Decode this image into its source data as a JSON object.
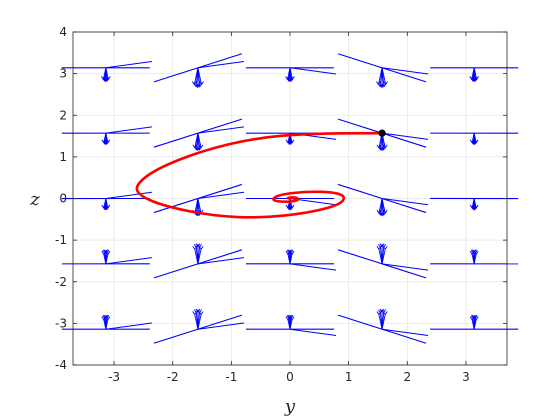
{
  "chart_data": {
    "type": "line",
    "title": "",
    "xlabel": "y",
    "ylabel": "z",
    "xlim": [
      -3.7,
      3.7
    ],
    "ylim": [
      -4,
      4
    ],
    "xticks": [
      -3,
      -2,
      -1,
      0,
      1,
      2,
      3
    ],
    "xtick_labels": [
      "-3",
      "-2",
      "-1",
      "0",
      "1",
      "2",
      "3"
    ],
    "yticks": [
      -4,
      -3,
      -2,
      -1,
      0,
      1,
      2,
      3,
      4
    ],
    "ytick_labels": [
      "-4",
      "-3",
      "-2",
      "-1",
      "0",
      "1",
      "2",
      "3",
      "4"
    ],
    "grid": true,
    "colors": {
      "vectors": "#0000ff",
      "trajectory": "#ff0000",
      "start_point": "#000000"
    },
    "series": [
      {
        "kind": "vector-field",
        "lattice_y": [
          -3.14,
          -1.57,
          0,
          1.57,
          3.14
        ],
        "lattice_z": [
          -3.14,
          -1.57,
          0,
          1.57,
          3.14
        ],
        "direction_slope": "-sin(y)",
        "samples_per_cell": 5
      },
      {
        "kind": "trajectory",
        "start": [
          1.57,
          1.57
        ],
        "points": [
          [
            1.57,
            1.57
          ],
          [
            0.3,
            1.56
          ],
          [
            -0.6,
            1.45
          ],
          [
            -1.5,
            1.15
          ],
          [
            -2.3,
            0.7
          ],
          [
            -2.65,
            0.3
          ],
          [
            -2.55,
            0.05
          ],
          [
            -2.1,
            -0.2
          ],
          [
            -1.3,
            -0.42
          ],
          [
            -0.5,
            -0.47
          ],
          [
            0.3,
            -0.35
          ],
          [
            0.85,
            -0.15
          ],
          [
            0.95,
            0.05
          ],
          [
            0.75,
            0.15
          ],
          [
            0.3,
            0.17
          ],
          [
            -0.15,
            0.1
          ],
          [
            -0.3,
            0.0
          ],
          [
            -0.25,
            -0.07
          ],
          [
            0.0,
            -0.08
          ],
          [
            0.15,
            -0.04
          ],
          [
            0.12,
            0.02
          ],
          [
            0.02,
            0.03
          ],
          [
            -0.05,
            0.01
          ],
          [
            0.0,
            0.0
          ]
        ]
      }
    ]
  }
}
